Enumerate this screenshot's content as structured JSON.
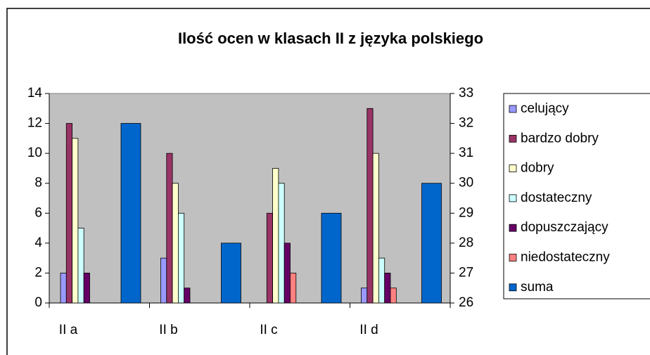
{
  "chart_data": {
    "type": "bar",
    "title": "Ilość ocen w klasach II z języka polskiego",
    "categories": [
      "II a",
      "II b",
      "II c",
      "II d"
    ],
    "series": [
      {
        "name": "celujący",
        "color": "#9999ff",
        "values": [
          2,
          3,
          0,
          1
        ]
      },
      {
        "name": "bardzo dobry",
        "color": "#993366",
        "values": [
          12,
          10,
          6,
          13
        ]
      },
      {
        "name": "dobry",
        "color": "#ffffcc",
        "values": [
          11,
          8,
          9,
          10
        ]
      },
      {
        "name": "dostateczny",
        "color": "#ccffff",
        "values": [
          5,
          6,
          8,
          3
        ]
      },
      {
        "name": "dopuszczający",
        "color": "#660066",
        "values": [
          2,
          1,
          4,
          2
        ]
      },
      {
        "name": "niedostateczny",
        "color": "#ff8080",
        "values": [
          0,
          0,
          2,
          1
        ]
      },
      {
        "name": "suma",
        "color": "#0066cc",
        "values": [
          32,
          28,
          29,
          30
        ],
        "axis": "y2"
      }
    ],
    "ylim": [
      0,
      14
    ],
    "yticks": [
      0,
      2,
      4,
      6,
      8,
      10,
      12,
      14
    ],
    "y2lim": [
      26,
      33
    ],
    "y2ticks": [
      26,
      27,
      28,
      29,
      30,
      31,
      32,
      33
    ],
    "grid": false,
    "legend": "right"
  }
}
